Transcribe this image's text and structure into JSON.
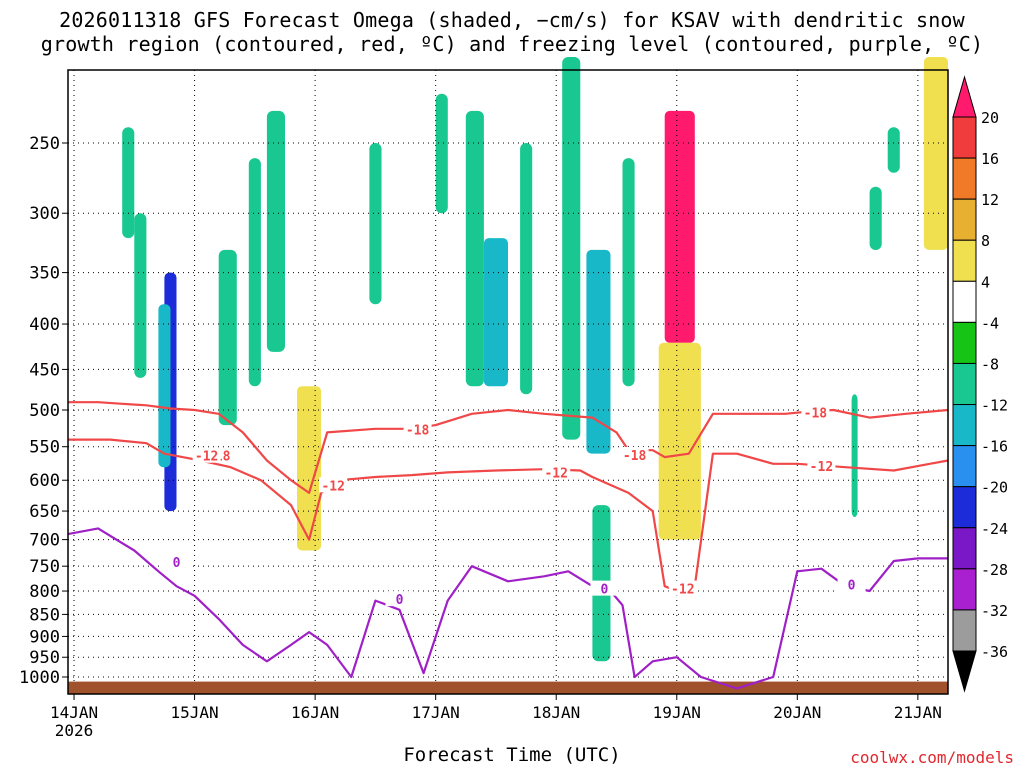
{
  "title": {
    "line1": "2026011318 GFS Forecast Omega (shaded, −cm/s) for KSAV with dendritic snow",
    "line2": "growth region (contoured, red, ºC) and freezing level (contoured, purple, ºC)"
  },
  "xlabel": "Forecast Time (UTC)",
  "credit": "coolwx.com/models",
  "chart_data": {
    "type": "heatmap",
    "y_axis": {
      "label": "",
      "scale": "pressure (log), inverted",
      "ticks": [
        250,
        300,
        350,
        400,
        450,
        500,
        550,
        600,
        650,
        700,
        750,
        800,
        850,
        900,
        950,
        1000
      ],
      "range": [
        1030,
        200
      ]
    },
    "x_axis": {
      "ticks": [
        "14JAN",
        "15JAN",
        "16JAN",
        "17JAN",
        "18JAN",
        "19JAN",
        "20JAN",
        "21JAN"
      ],
      "year_label": "2026",
      "range_days": [
        13.95,
        21.25
      ]
    },
    "grid": true,
    "colorbar": {
      "levels": [
        20,
        16,
        12,
        8,
        4,
        -4,
        -8,
        -12,
        -16,
        -20,
        -24,
        -28,
        -32,
        -36
      ],
      "colors": [
        "#ff1a6e",
        "#f03c3c",
        "#f07a28",
        "#e8b030",
        "#f0e050",
        "#ffffff",
        "#16c416",
        "#18c890",
        "#18b8c8",
        "#2a90f0",
        "#1c2cd8",
        "#7a18c8",
        "#a820d0",
        "#9c9c9c",
        "#000000"
      ]
    },
    "contours": {
      "dgz_minus12": {
        "color": "#f04848",
        "label": "-12",
        "x": [
          13.95,
          14.3,
          14.6,
          14.75,
          14.9,
          15.05,
          15.3,
          15.55,
          15.8,
          15.95,
          16.05,
          16.2,
          16.5,
          16.8,
          17.1,
          17.5,
          17.9,
          18.2,
          18.3,
          18.6,
          18.8,
          18.9,
          19.0,
          19.15,
          19.3,
          19.5,
          19.8,
          20.0,
          20.4,
          20.8,
          21.1,
          21.25
        ],
        "p": [
          540,
          540,
          545,
          560,
          565,
          570,
          580,
          600,
          640,
          700,
          620,
          600,
          595,
          592,
          588,
          585,
          583,
          585,
          595,
          620,
          650,
          790,
          800,
          790,
          560,
          560,
          575,
          575,
          580,
          585,
          575,
          570
        ]
      },
      "dgz_minus18": {
        "color": "#f04848",
        "label": "-18",
        "x": [
          13.95,
          14.2,
          14.4,
          14.6,
          14.8,
          15.0,
          15.2,
          15.4,
          15.6,
          15.8,
          15.95,
          16.1,
          16.5,
          16.8,
          17.0,
          17.3,
          17.6,
          17.9,
          18.3,
          18.5,
          18.6,
          18.8,
          18.9,
          19.1,
          19.3,
          19.6,
          19.9,
          20.1,
          20.3,
          20.6,
          20.9,
          21.25
        ],
        "p": [
          490,
          490,
          492,
          494,
          498,
          500,
          505,
          530,
          570,
          600,
          620,
          530,
          525,
          525,
          520,
          505,
          500,
          505,
          510,
          530,
          555,
          555,
          565,
          560,
          505,
          505,
          505,
          502,
          500,
          510,
          505,
          500
        ]
      },
      "freezing_0": {
        "color": "#a020c8",
        "label": "0",
        "x": [
          13.95,
          14.2,
          14.5,
          14.7,
          14.85,
          15.0,
          15.2,
          15.4,
          15.6,
          15.8,
          15.95,
          16.1,
          16.3,
          16.5,
          16.7,
          16.9,
          17.1,
          17.3,
          17.6,
          17.9,
          18.1,
          18.3,
          18.45,
          18.55,
          18.65,
          18.8,
          19.0,
          19.2,
          19.5,
          19.8,
          20.0,
          20.2,
          20.4,
          20.6,
          20.8,
          21.0,
          21.25
        ],
        "p": [
          690,
          680,
          720,
          760,
          790,
          810,
          860,
          920,
          960,
          920,
          890,
          920,
          1000,
          820,
          840,
          990,
          820,
          750,
          780,
          770,
          760,
          790,
          800,
          830,
          1000,
          960,
          950,
          1000,
          1030,
          1000,
          760,
          755,
          790,
          800,
          740,
          735,
          735
        ]
      }
    },
    "omega_regions": [
      {
        "x": [
          14.75,
          14.85
        ],
        "p": [
          350,
          650
        ],
        "value": -20
      },
      {
        "x": [
          14.7,
          14.8
        ],
        "p": [
          380,
          580
        ],
        "value": -12
      },
      {
        "x": [
          15.85,
          16.05
        ],
        "p": [
          470,
          720
        ],
        "value": 8
      },
      {
        "x": [
          17.4,
          17.6
        ],
        "p": [
          320,
          470
        ],
        "value": -12
      },
      {
        "x": [
          18.25,
          18.45
        ],
        "p": [
          330,
          560
        ],
        "value": -12
      },
      {
        "x": [
          18.9,
          19.15
        ],
        "p": [
          230,
          420
        ],
        "value": 20
      },
      {
        "x": [
          18.85,
          19.2
        ],
        "p": [
          420,
          700
        ],
        "value": 8
      },
      {
        "x": [
          21.05,
          21.25
        ],
        "p": [
          200,
          330
        ],
        "value": 8
      }
    ]
  }
}
